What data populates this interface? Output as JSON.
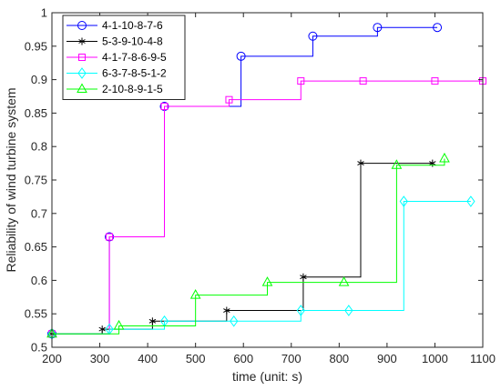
{
  "chart_data": {
    "type": "line",
    "step": true,
    "xlabel": "time (unit: s)",
    "ylabel": "Reliability of wind turbine system",
    "xlim": [
      200,
      1100
    ],
    "ylim": [
      0.5,
      1
    ],
    "xticks": [
      200,
      300,
      400,
      500,
      600,
      700,
      800,
      900,
      1000,
      1100
    ],
    "yticks": [
      0.5,
      0.55,
      0.6,
      0.65,
      0.7,
      0.75,
      0.8,
      0.85,
      0.9,
      0.95,
      1
    ],
    "xtick_labels": [
      "200",
      "300",
      "400",
      "500",
      "600",
      "700",
      "800",
      "900",
      "1000",
      "1100"
    ],
    "ytick_labels": [
      "0.5",
      "0.55",
      "0.6",
      "0.65",
      "0.7",
      "0.75",
      "0.8",
      "0.85",
      "0.9",
      "0.95",
      "1"
    ],
    "grid": false,
    "legend_position": "top-left",
    "series": [
      {
        "name": "4-1-10-8-7-6",
        "color": "#0000ff",
        "marker": "circle",
        "points": [
          [
            200,
            0.52
          ],
          [
            320,
            0.665
          ],
          [
            435,
            0.86
          ],
          [
            595,
            0.935
          ],
          [
            745,
            0.965
          ],
          [
            880,
            0.978
          ],
          [
            1005,
            0.978
          ]
        ]
      },
      {
        "name": "5-3-9-10-4-8",
        "color": "#000000",
        "marker": "asterisk",
        "points": [
          [
            200,
            0.52
          ],
          [
            305,
            0.527
          ],
          [
            410,
            0.539
          ],
          [
            565,
            0.555
          ],
          [
            725,
            0.605
          ],
          [
            845,
            0.775
          ],
          [
            995,
            0.775
          ]
        ]
      },
      {
        "name": "4-1-7-8-6-9-5",
        "color": "#ff00ff",
        "marker": "square",
        "points": [
          [
            200,
            0.52
          ],
          [
            320,
            0.665
          ],
          [
            435,
            0.86
          ],
          [
            570,
            0.87
          ],
          [
            720,
            0.898
          ],
          [
            850,
            0.898
          ],
          [
            1000,
            0.898
          ],
          [
            1100,
            0.898
          ]
        ]
      },
      {
        "name": "6-3-7-8-5-1-2",
        "color": "#00ffff",
        "marker": "diamond",
        "points": [
          [
            200,
            0.52
          ],
          [
            320,
            0.527
          ],
          [
            435,
            0.539
          ],
          [
            580,
            0.539
          ],
          [
            720,
            0.555
          ],
          [
            820,
            0.555
          ],
          [
            935,
            0.718
          ],
          [
            1075,
            0.718
          ]
        ]
      },
      {
        "name": "2-10-8-9-1-5",
        "color": "#00ff00",
        "marker": "triangle",
        "points": [
          [
            200,
            0.52
          ],
          [
            340,
            0.532
          ],
          [
            500,
            0.578
          ],
          [
            650,
            0.597
          ],
          [
            810,
            0.597
          ],
          [
            920,
            0.772
          ],
          [
            1020,
            0.782
          ]
        ]
      }
    ]
  }
}
